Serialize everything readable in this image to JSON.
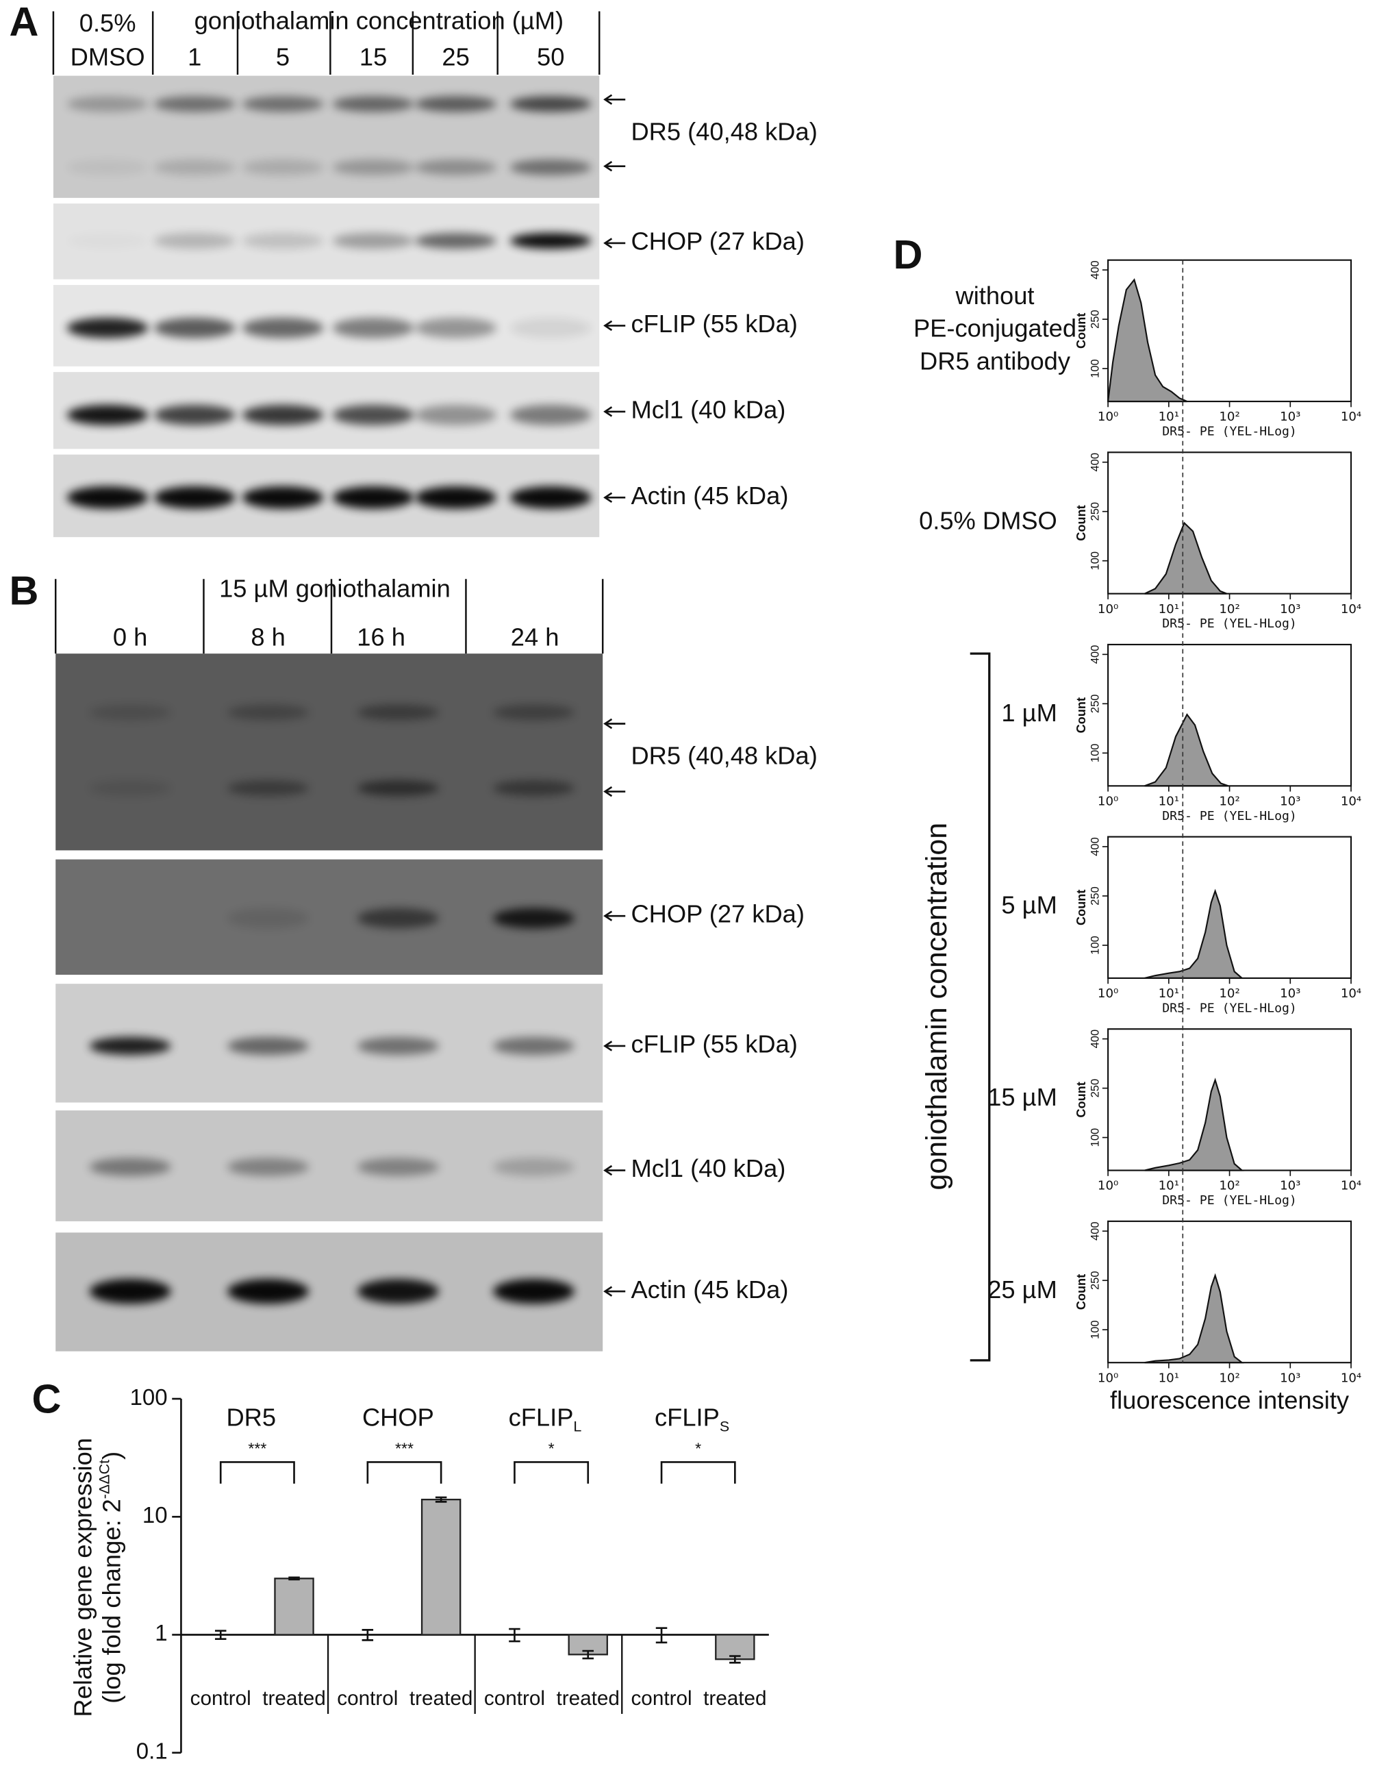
{
  "panel_labels": [
    "A",
    "B",
    "C",
    "D"
  ],
  "panel_a": {
    "control": [
      "0.5%",
      "DMSO"
    ],
    "title": "goniothalamin concentration (µM)",
    "lanes": [
      1,
      5,
      15,
      25,
      50
    ],
    "blots": [
      "DR5 (40,48 kDa)",
      "CHOP (27 kDa)",
      "cFLIP (55 kDa)",
      "Mcl1 (40 kDa)",
      "Actin (45 kDa)"
    ]
  },
  "panel_b": {
    "title": "15 µM goniothalamin",
    "lanes": [
      "0 h",
      "8 h",
      "16 h",
      "24 h"
    ],
    "blots": [
      "DR5 (40,48 kDa)",
      "CHOP (27 kDa)",
      "cFLIP (55 kDa)",
      "Mcl1 (40 kDa)",
      "Actin (45 kDa)"
    ]
  },
  "panel_d": {
    "group_label": "goniothalamin concentration"
  },
  "chart_data": [
    {
      "type": "bar",
      "log_scale": true,
      "ylabel": "Relative gene expression",
      "ylabel2": "(log fold change: 2",
      "ylabel2_sup": "-ΔΔCt",
      "ylabel2_end": ")",
      "categories": [
        "DR5",
        "CHOP",
        "cFLIP",
        "cFLIP"
      ],
      "category_subscripts": [
        null,
        null,
        "L",
        "S"
      ],
      "significance": [
        "***",
        "***",
        "*",
        "*"
      ],
      "series": [
        {
          "name": "control",
          "color": "#ffffff",
          "values": [
            1,
            1,
            1,
            1
          ],
          "errors": [
            0.08,
            0.1,
            0.12,
            0.14
          ]
        },
        {
          "name": "treated",
          "color": "#b3b3b3",
          "values": [
            3,
            14,
            0.68,
            0.62
          ],
          "errors": [
            0.06,
            0.6,
            0.05,
            0.04
          ]
        }
      ],
      "ylim": [
        0.1,
        100
      ],
      "yticks": [
        0.1,
        1,
        10,
        100
      ]
    },
    {
      "type": "area",
      "title": [
        "without",
        "PE-conjugated",
        "DR5 antibody"
      ],
      "xlabel": "DR5- PE (YEL-HLog)",
      "ylabel": "Count",
      "log_x": true,
      "color": "#999999",
      "xlim": [
        1,
        10000
      ],
      "xticks": [
        {
          "value": 1,
          "label": "10⁰"
        },
        {
          "value": 10,
          "label": "10¹"
        },
        {
          "value": 100,
          "label": "10²"
        },
        {
          "value": 1000,
          "label": "10³"
        },
        {
          "value": 10000,
          "label": "10⁴"
        }
      ],
      "ylim": [
        0,
        430
      ],
      "yticks": [
        100,
        250,
        400
      ],
      "threshold": 17,
      "x": [
        1,
        1.2,
        1.5,
        2,
        2.7,
        3.5,
        4.5,
        6,
        8,
        11,
        15,
        20
      ],
      "values": [
        0,
        120,
        230,
        340,
        370,
        300,
        180,
        80,
        45,
        30,
        10,
        0
      ]
    },
    {
      "type": "area",
      "title": [
        "0.5% DMSO"
      ],
      "xlabel": "DR5- PE (YEL-HLog)",
      "ylabel": "Count",
      "log_x": true,
      "color": "#999999",
      "xlim": [
        1,
        10000
      ],
      "xticks": [
        {
          "value": 1,
          "label": "10⁰"
        },
        {
          "value": 10,
          "label": "10¹"
        },
        {
          "value": 100,
          "label": "10²"
        },
        {
          "value": 1000,
          "label": "10³"
        },
        {
          "value": 10000,
          "label": "10⁴"
        }
      ],
      "ylim": [
        0,
        430
      ],
      "yticks": [
        100,
        250,
        400
      ],
      "threshold": 17,
      "x": [
        4,
        6,
        9,
        13,
        18,
        25,
        35,
        50,
        70,
        90
      ],
      "values": [
        0,
        15,
        60,
        150,
        215,
        190,
        110,
        40,
        8,
        0
      ]
    },
    {
      "type": "area",
      "title": [
        "1 µM"
      ],
      "xlabel": "DR5- PE (YEL-HLog)",
      "ylabel": "Count",
      "log_x": true,
      "color": "#999999",
      "xlim": [
        1,
        10000
      ],
      "xticks": [
        {
          "value": 1,
          "label": "10⁰"
        },
        {
          "value": 10,
          "label": "10¹"
        },
        {
          "value": 100,
          "label": "10²"
        },
        {
          "value": 1000,
          "label": "10³"
        },
        {
          "value": 10000,
          "label": "10⁴"
        }
      ],
      "ylim": [
        0,
        430
      ],
      "yticks": [
        100,
        250,
        400
      ],
      "threshold": 17,
      "x": [
        4,
        6,
        9,
        13,
        20,
        27,
        37,
        52,
        72,
        95
      ],
      "values": [
        0,
        12,
        55,
        150,
        217,
        185,
        105,
        38,
        8,
        0
      ]
    },
    {
      "type": "area",
      "title": [
        "5 µM"
      ],
      "xlabel": "DR5- PE (YEL-HLog)",
      "ylabel": "Count",
      "log_x": true,
      "color": "#999999",
      "xlim": [
        1,
        10000
      ],
      "xticks": [
        {
          "value": 1,
          "label": "10⁰"
        },
        {
          "value": 10,
          "label": "10¹"
        },
        {
          "value": 100,
          "label": "10²"
        },
        {
          "value": 1000,
          "label": "10³"
        },
        {
          "value": 10000,
          "label": "10⁴"
        }
      ],
      "ylim": [
        0,
        430
      ],
      "yticks": [
        100,
        250,
        400
      ],
      "threshold": 17,
      "x": [
        4,
        6,
        10,
        15,
        22,
        30,
        40,
        50,
        58,
        70,
        90,
        120,
        160
      ],
      "values": [
        0,
        8,
        15,
        20,
        30,
        60,
        140,
        230,
        265,
        220,
        100,
        20,
        0
      ]
    },
    {
      "type": "area",
      "title": [
        "15 µM"
      ],
      "xlabel": "DR5- PE (YEL-HLog)",
      "ylabel": "Count",
      "log_x": true,
      "color": "#999999",
      "xlim": [
        1,
        10000
      ],
      "xticks": [
        {
          "value": 1,
          "label": "10⁰"
        },
        {
          "value": 10,
          "label": "10¹"
        },
        {
          "value": 100,
          "label": "10²"
        },
        {
          "value": 1000,
          "label": "10³"
        },
        {
          "value": 10000,
          "label": "10⁴"
        }
      ],
      "ylim": [
        0,
        430
      ],
      "yticks": [
        100,
        250,
        400
      ],
      "threshold": 17,
      "x": [
        4,
        6,
        10,
        15,
        22,
        30,
        40,
        50,
        58,
        70,
        90,
        120,
        160
      ],
      "values": [
        0,
        8,
        15,
        22,
        32,
        62,
        145,
        240,
        275,
        225,
        100,
        20,
        0
      ]
    },
    {
      "type": "area",
      "title": [
        "25 µM"
      ],
      "xlabel": "fluorescence intensity",
      "ylabel": "Count",
      "log_x": true,
      "color": "#999999",
      "xlim": [
        1,
        10000
      ],
      "xticks": [
        {
          "value": 1,
          "label": "10⁰"
        },
        {
          "value": 10,
          "label": "10¹"
        },
        {
          "value": 100,
          "label": "10²"
        },
        {
          "value": 1000,
          "label": "10³"
        },
        {
          "value": 10000,
          "label": "10⁴"
        }
      ],
      "ylim": [
        0,
        430
      ],
      "yticks": [
        100,
        250,
        400
      ],
      "threshold": 17,
      "x": [
        4,
        6,
        10,
        15,
        22,
        30,
        40,
        50,
        58,
        70,
        90,
        120,
        160
      ],
      "values": [
        0,
        5,
        8,
        12,
        25,
        55,
        135,
        230,
        265,
        215,
        95,
        18,
        0
      ]
    }
  ]
}
